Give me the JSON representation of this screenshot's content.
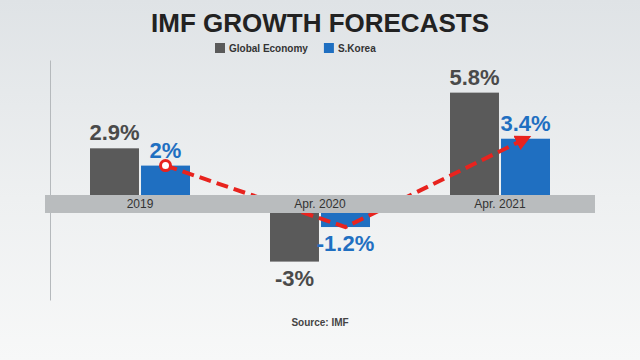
{
  "chart_data": {
    "type": "bar",
    "title": "IMF GROWTH FORECASTS",
    "source": "Source: IMF",
    "categories": [
      "2019",
      "Apr. 2020",
      "Apr. 2021"
    ],
    "series": [
      {
        "name": "Global Economy",
        "color": "#5a5a5a",
        "values": [
          2.9,
          -3,
          5.8
        ],
        "value_labels": [
          "2.9%",
          "-3%",
          "5.8%"
        ]
      },
      {
        "name": "S.Korea",
        "color": "#1f6fc1",
        "values": [
          2,
          -1.2,
          3.4
        ],
        "value_labels": [
          "2%",
          "-1.2%",
          "3.4%"
        ]
      }
    ],
    "ylim": [
      -5,
      7.5
    ],
    "data_labels": true,
    "tick_labels": "x",
    "legend": "top"
  }
}
